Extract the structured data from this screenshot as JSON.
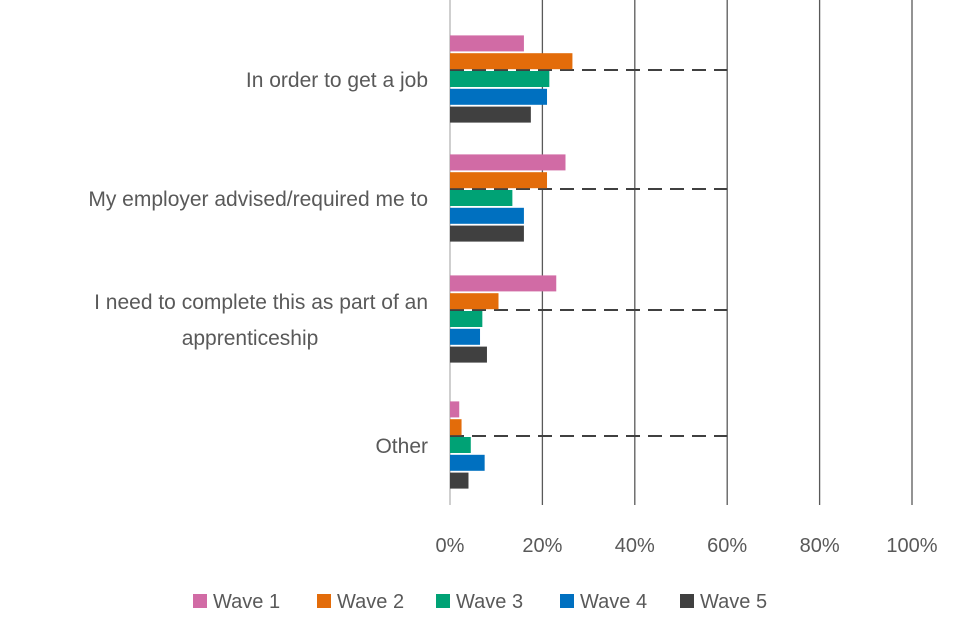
{
  "chart_data": {
    "type": "bar",
    "orientation": "horizontal",
    "categories": [
      [
        "In order to get a job"
      ],
      [
        "My employer advised/required me to"
      ],
      [
        "I need to complete this as part of an",
        "apprenticeship"
      ],
      [
        "Other"
      ]
    ],
    "series": [
      {
        "name": "Wave 1",
        "color": "#D16BA5",
        "values": [
          16,
          25,
          23,
          2
        ]
      },
      {
        "name": "Wave 2",
        "color": "#E36C0A",
        "values": [
          26.5,
          21,
          10.5,
          2.5
        ]
      },
      {
        "name": "Wave 3",
        "color": "#00A275",
        "values": [
          21.5,
          13.5,
          7,
          4.5
        ]
      },
      {
        "name": "Wave 4",
        "color": "#0070C0",
        "values": [
          21,
          16,
          6.5,
          7.5
        ]
      },
      {
        "name": "Wave 5",
        "color": "#404040",
        "values": [
          17.5,
          16,
          8,
          4
        ]
      }
    ],
    "reference_line": {
      "value": 60,
      "style": "dashed",
      "color": "#404040"
    },
    "xlim": [
      0,
      100
    ],
    "xticks": [
      "0%",
      "20%",
      "40%",
      "60%",
      "80%",
      "100%"
    ],
    "grid": "vertical",
    "legend": "bottom",
    "title": "",
    "xlabel": "",
    "ylabel": ""
  }
}
